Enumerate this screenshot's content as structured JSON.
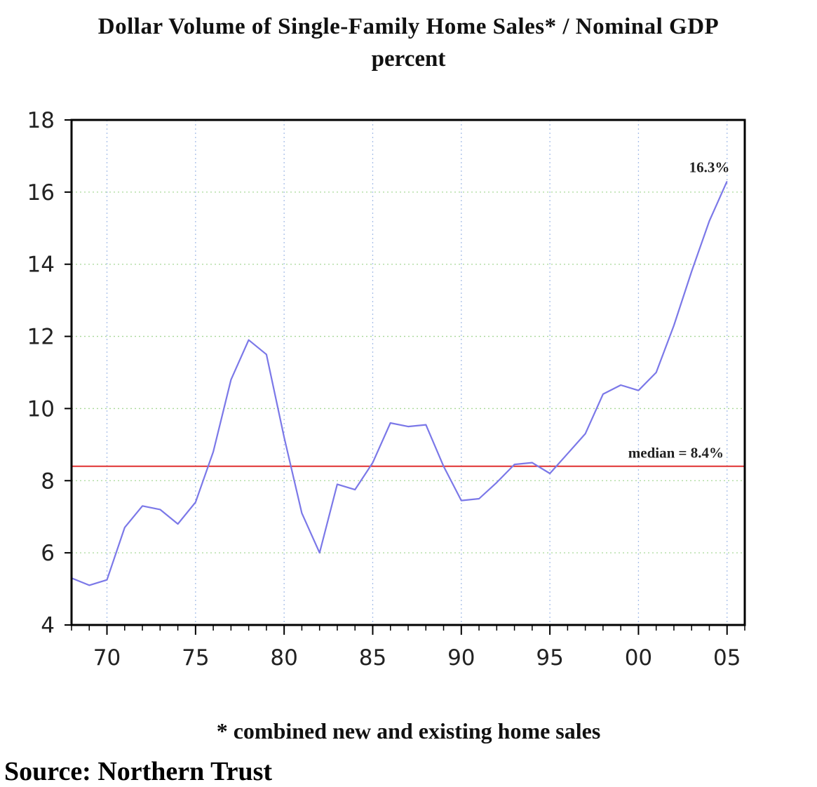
{
  "chart_data": {
    "type": "line",
    "title": "Dollar Volume of Single-Family Home Sales* / Nominal GDP",
    "subtitle": "percent",
    "footnote": "* combined new and existing home sales",
    "source": "Source: Northern Trust",
    "xlim": [
      1968,
      2006
    ],
    "ylim": [
      4,
      18
    ],
    "y_ticks": [
      4,
      6,
      8,
      10,
      12,
      14,
      16,
      18
    ],
    "x_ticks": [
      {
        "value": 1970,
        "label": "70"
      },
      {
        "value": 1975,
        "label": "75"
      },
      {
        "value": 1980,
        "label": "80"
      },
      {
        "value": 1985,
        "label": "85"
      },
      {
        "value": 1990,
        "label": "90"
      },
      {
        "value": 1995,
        "label": "95"
      },
      {
        "value": 2000,
        "label": "00"
      },
      {
        "value": 2005,
        "label": "05"
      }
    ],
    "grid": true,
    "series": [
      {
        "color": "#7b78e8",
        "x": [
          1968,
          1969,
          1970,
          1971,
          1972,
          1973,
          1974,
          1975,
          1976,
          1977,
          1978,
          1979,
          1980,
          1981,
          1982,
          1983,
          1984,
          1985,
          1986,
          1987,
          1988,
          1989,
          1990,
          1991,
          1992,
          1993,
          1994,
          1995,
          1996,
          1997,
          1998,
          1999,
          2000,
          2001,
          2002,
          2003,
          2004,
          2005
        ],
        "y": [
          5.3,
          5.1,
          5.25,
          6.7,
          7.3,
          7.2,
          6.8,
          7.4,
          8.8,
          10.8,
          11.9,
          11.5,
          9.2,
          7.1,
          6.0,
          7.9,
          7.75,
          8.5,
          9.6,
          9.5,
          9.55,
          8.4,
          7.45,
          7.5,
          7.95,
          8.45,
          8.5,
          8.2,
          8.75,
          9.3,
          10.4,
          10.65,
          10.5,
          11.0,
          12.3,
          13.8,
          15.2,
          16.3
        ]
      }
    ],
    "reference_lines": [
      {
        "y": 8.4,
        "color": "#e03030",
        "label": "median = 8.4%"
      }
    ],
    "annotations": [
      {
        "x": 2004,
        "y": 16.55,
        "text": "16.3%"
      }
    ]
  }
}
